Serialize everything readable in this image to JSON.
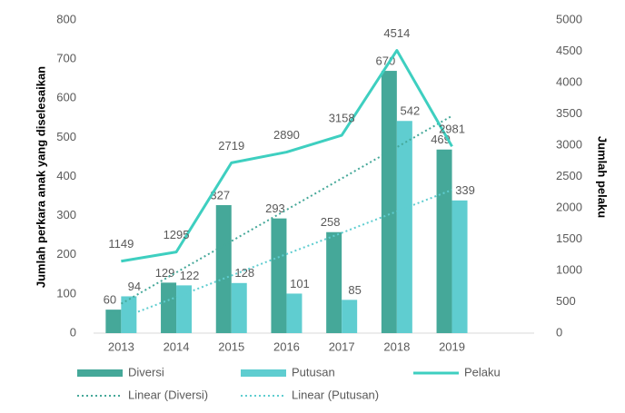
{
  "chart_data": {
    "type": "bar",
    "y_label": "Jumlah perkara anak yang diselesaikan",
    "y2_label": "Jumlah pelaku",
    "categories": [
      "2013",
      "2014",
      "2015",
      "2016",
      "2017",
      "2018",
      "2019"
    ],
    "ylim": [
      0,
      800
    ],
    "yticks": [
      0,
      100,
      200,
      300,
      400,
      500,
      600,
      700,
      800
    ],
    "y2lim": [
      0,
      5000
    ],
    "y2ticks": [
      0,
      500,
      1000,
      1500,
      2000,
      2500,
      3000,
      3500,
      4000,
      4500,
      5000
    ],
    "grid": false,
    "legend": "bottom",
    "series": [
      {
        "name": "Diversi",
        "type": "bar",
        "color": "#45a899",
        "values": [
          60,
          129,
          327,
          293,
          258,
          670,
          469
        ]
      },
      {
        "name": "Putusan",
        "type": "bar",
        "color": "#5fcdd0",
        "values": [
          94,
          122,
          128,
          101,
          85,
          542,
          339
        ]
      },
      {
        "name": "Pelaku",
        "type": "line",
        "axis": "y2",
        "color": "#3ecfc0",
        "values": [
          1149,
          1295,
          2719,
          2890,
          3158,
          4514,
          2981
        ]
      },
      {
        "name": "Linear (Diversi)",
        "type": "trend",
        "color": "#45a899",
        "values": [
          75,
          155,
          235,
          315,
          395,
          475,
          555
        ]
      },
      {
        "name": "Linear (Putusan)",
        "type": "trend",
        "color": "#5fcdd0",
        "values": [
          38,
          92,
          147,
          202,
          256,
          311,
          366
        ]
      }
    ]
  }
}
